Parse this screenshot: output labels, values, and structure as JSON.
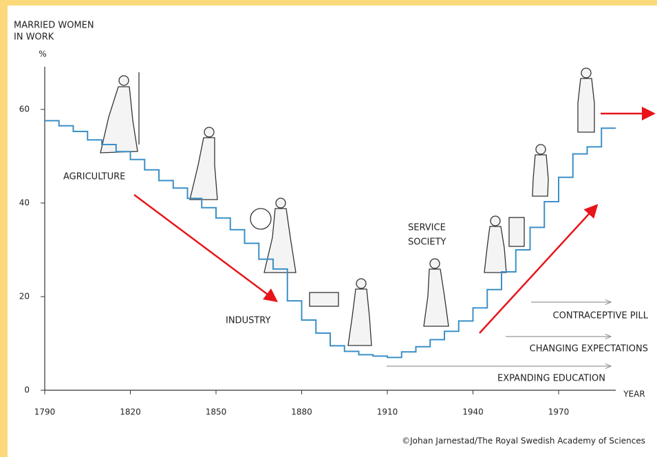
{
  "chart_data": {
    "type": "step",
    "ylabel": [
      "MARRIED WOMEN",
      "IN WORK"
    ],
    "yunit": "%",
    "xlabel": "YEAR",
    "x": [
      1790,
      1795,
      1800,
      1805,
      1810,
      1815,
      1820,
      1825,
      1830,
      1835,
      1840,
      1845,
      1850,
      1855,
      1860,
      1865,
      1870,
      1875,
      1880,
      1885,
      1890,
      1895,
      1900,
      1905,
      1910,
      1915,
      1920,
      1925,
      1930,
      1935,
      1940,
      1945,
      1950,
      1955,
      1960,
      1965,
      1970,
      1975,
      1980,
      1985
    ],
    "values": [
      57.6,
      56.5,
      55.3,
      53.5,
      52.5,
      51,
      49.3,
      47.1,
      44.8,
      43.2,
      41,
      39,
      36.8,
      34.3,
      31.4,
      28,
      25.9,
      19.1,
      15,
      12.2,
      9.5,
      8.3,
      7.6,
      7.3,
      7,
      8.2,
      9.3,
      10.8,
      12.6,
      14.8,
      17.6,
      21.5,
      25.3,
      30,
      34.8,
      40.3,
      45.5,
      50.5,
      52,
      56
    ],
    "color": "#3a8fc8",
    "xlim": [
      1790,
      1990
    ],
    "ylim": [
      0,
      70
    ],
    "xticks": [
      1790,
      1820,
      1850,
      1880,
      1910,
      1940,
      1970
    ],
    "yticks": [
      0,
      20,
      40,
      60
    ],
    "annotations": [
      [
        "AGRICULTURE"
      ],
      [
        "INDUSTRY"
      ],
      [
        "SERVICE",
        "SOCIETY"
      ],
      [
        "CONTRACEPTIVE PILL"
      ],
      [
        "CHANGING EXPECTATIONS"
      ],
      [
        "EXPANDING EDUCATION"
      ]
    ],
    "credit": "©Johan Jarnestad/The Royal Swedish Academy of Sciences"
  }
}
